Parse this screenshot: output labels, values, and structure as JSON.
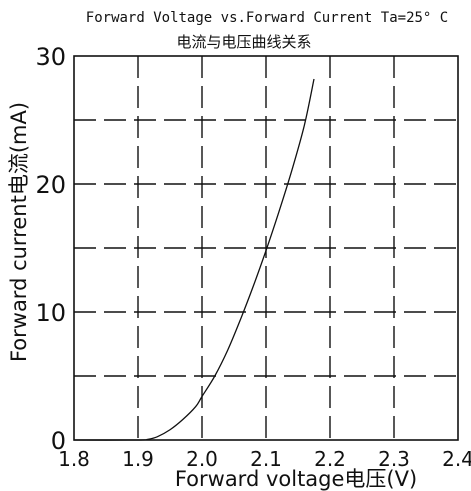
{
  "chart_data": {
    "type": "line",
    "title": "Forward Voltage vs.Forward Current Ta=25° C",
    "subtitle": "电流与电压曲线关系",
    "xlabel": "Forward voltage电压(V)",
    "ylabel": "Forward current电流(mA)",
    "xlim": [
      1.8,
      2.4
    ],
    "ylim": [
      0,
      30
    ],
    "x_ticks": [
      "1.8",
      "1.9",
      "2.0",
      "2.1",
      "2.2",
      "2.3",
      "2.4"
    ],
    "y_ticks": [
      "0",
      "10",
      "20",
      "30"
    ],
    "grid": true,
    "grid_style": "dashed",
    "series": [
      {
        "name": "",
        "color": "#111111",
        "x": [
          1.8,
          1.9,
          1.915,
          1.93,
          1.95,
          1.97,
          1.99,
          2.0,
          2.02,
          2.04,
          2.06,
          2.08,
          2.1,
          2.12,
          2.14,
          2.16,
          2.175
        ],
        "y": [
          0,
          0,
          0.05,
          0.25,
          0.8,
          1.6,
          2.6,
          3.4,
          5.0,
          7.0,
          9.4,
          12.0,
          14.8,
          17.8,
          21.0,
          24.6,
          28.2
        ]
      }
    ]
  }
}
